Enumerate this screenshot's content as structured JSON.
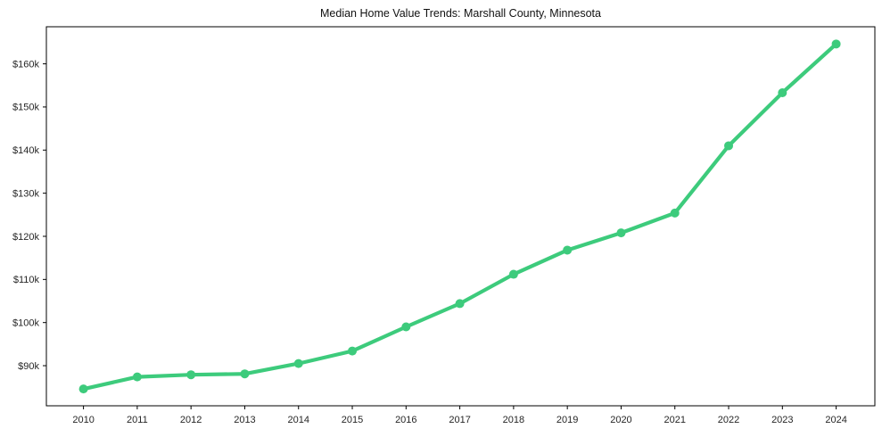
{
  "chart_data": {
    "type": "line",
    "title": "Median Home Value Trends: Marshall County, Minnesota",
    "x": [
      2010,
      2011,
      2012,
      2013,
      2014,
      2015,
      2016,
      2017,
      2018,
      2019,
      2020,
      2021,
      2022,
      2023,
      2024
    ],
    "values": [
      84600,
      87400,
      87900,
      88100,
      90500,
      93400,
      99000,
      104400,
      111200,
      116800,
      120800,
      125400,
      141000,
      153300,
      164600
    ],
    "xlabel": "",
    "ylabel": "",
    "xlim": [
      2009.31,
      2024.72
    ],
    "ylim": [
      80700,
      168600
    ],
    "xtick_labels": [
      "2010",
      "2011",
      "2012",
      "2013",
      "2014",
      "2015",
      "2016",
      "2017",
      "2018",
      "2019",
      "2020",
      "2021",
      "2022",
      "2023",
      "2024"
    ],
    "yticks": [
      {
        "value": 90000,
        "label": "$90k"
      },
      {
        "value": 100000,
        "label": "$100k"
      },
      {
        "value": 110000,
        "label": "$110k"
      },
      {
        "value": 120000,
        "label": "$120k"
      },
      {
        "value": 130000,
        "label": "$130k"
      },
      {
        "value": 140000,
        "label": "$140k"
      },
      {
        "value": 150000,
        "label": "$150k"
      },
      {
        "value": 160000,
        "label": "$160k"
      }
    ],
    "grid": false,
    "legend": "none",
    "line_color": "#3dcb7c",
    "marker": "circle",
    "axis_color": "#000000",
    "text_color": "#262626"
  }
}
